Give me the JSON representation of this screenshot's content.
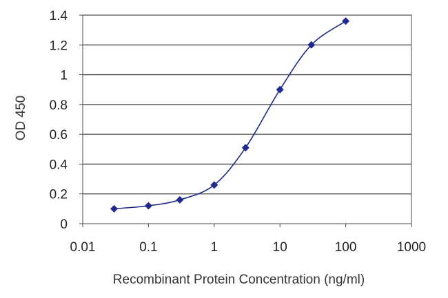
{
  "chart_data": {
    "type": "line",
    "xscale": "log",
    "xlabel": "Recombinant Protein Concentration (ng/ml)",
    "ylabel": "OD 450",
    "xlim": [
      0.01,
      1000
    ],
    "ylim": [
      0,
      1.4
    ],
    "xticks": [
      0.01,
      0.1,
      1,
      10,
      100,
      1000
    ],
    "xtick_labels": [
      "0.01",
      "0.1",
      "1",
      "10",
      "100",
      "1000"
    ],
    "yticks": [
      0,
      0.2,
      0.4,
      0.6,
      0.8,
      1,
      1.2,
      1.4
    ],
    "ytick_labels": [
      "0",
      "0.2",
      "0.4",
      "0.6",
      "0.8",
      "1",
      "1.2",
      "1.4"
    ],
    "grid": "horizontal",
    "legend": "none",
    "series": [
      {
        "color": "#1e2a8c",
        "marker": "diamond",
        "x": [
          0.03,
          0.1,
          0.3,
          1,
          3,
          10,
          30,
          100
        ],
        "y": [
          0.1,
          0.12,
          0.16,
          0.26,
          0.51,
          0.9,
          1.2,
          1.36
        ]
      }
    ]
  }
}
